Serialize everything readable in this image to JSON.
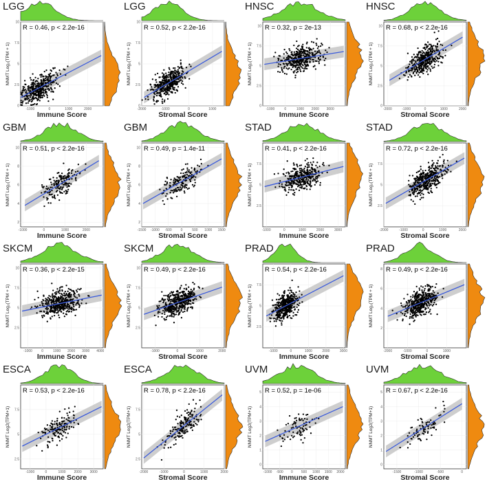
{
  "figure": {
    "panel_count": 16,
    "layout": "4x4",
    "density_top_color": "#6dd13a",
    "density_right_color": "#ef8a10",
    "fit_line_color": "#3b5bdb",
    "ci_band_color": "#bdbdbd"
  },
  "chart_data": [
    {
      "type": "scatter",
      "title": "LGG",
      "annotation": "R = 0.46, p < 2.2e-16",
      "xlabel": "Immune Score",
      "ylabel": "NNMT Log₂(TPM + 1)",
      "xlim": [
        -1500,
        2800
      ],
      "ylim": [
        0,
        10
      ],
      "xticks": [
        -1000,
        0,
        1000,
        2000
      ],
      "yticks": [
        0.0,
        2.5,
        5.0,
        7.5,
        10.0
      ],
      "n": 400,
      "fit": [
        [
          -1500,
          1.0
        ],
        [
          2700,
          6.0
        ]
      ],
      "x_center": -500,
      "x_spread": 800,
      "seed": 11
    },
    {
      "type": "scatter",
      "title": "LGG",
      "annotation": "R = 0.52, p < 2.2e-16",
      "xlabel": "Stromal Score",
      "ylabel": "NNMT Log₂(TPM + 1)",
      "xlim": [
        -2000,
        1500
      ],
      "ylim": [
        0,
        10
      ],
      "xticks": [
        -2000,
        -1000,
        0,
        1000
      ],
      "yticks": [
        0.0,
        2.5,
        5.0,
        7.5,
        10.0
      ],
      "n": 400,
      "fit": [
        [
          -1900,
          1.0
        ],
        [
          1400,
          6.5
        ]
      ],
      "x_center": -900,
      "x_spread": 600,
      "seed": 12
    },
    {
      "type": "scatter",
      "title": "HNSC",
      "annotation": "R = 0.32, p = 2e-13",
      "xlabel": "Immune Score",
      "ylabel": "NNMT Log₂(TPM + 1)",
      "xlim": [
        -1500,
        4000
      ],
      "ylim": [
        0,
        10.5
      ],
      "xticks": [
        -1000,
        0,
        1000,
        2000,
        3000
      ],
      "yticks": [
        0.0,
        2.5,
        5.0,
        7.5,
        10.0
      ],
      "n": 380,
      "fit": [
        [
          -1400,
          5.2
        ],
        [
          3900,
          6.8
        ]
      ],
      "x_center": 1000,
      "x_spread": 1200,
      "seed": 13
    },
    {
      "type": "scatter",
      "title": "HNSC",
      "annotation": "R = 0.68, p < 2.2e-16",
      "xlabel": "Stromal Score",
      "ylabel": "NNMT Log₂(TPM + 1)",
      "xlim": [
        -2200,
        2200
      ],
      "ylim": [
        0,
        10.5
      ],
      "xticks": [
        -2000,
        -1000,
        0,
        1000,
        2000
      ],
      "yticks": [
        0.0,
        2.5,
        5.0,
        7.5,
        10.0
      ],
      "n": 380,
      "fit": [
        [
          -1900,
          3.2
        ],
        [
          2000,
          8.6
        ]
      ],
      "x_center": 0,
      "x_spread": 800,
      "seed": 14
    },
    {
      "type": "scatter",
      "title": "GBM",
      "annotation": "R = 0.51, p < 2.2e-16",
      "xlabel": "Immune Score",
      "ylabel": "NNMT Log₂(TPM + 1)",
      "xlim": [
        -1100,
        2800
      ],
      "ylim": [
        1.5,
        10.5
      ],
      "xticks": [
        -1000,
        0,
        1000,
        2000
      ],
      "yticks": [
        2,
        4,
        6,
        8,
        10
      ],
      "n": 160,
      "fit": [
        [
          -900,
          3.8
        ],
        [
          2600,
          8.6
        ]
      ],
      "x_center": 800,
      "x_spread": 750,
      "seed": 15
    },
    {
      "type": "scatter",
      "title": "GBM",
      "annotation": "R = 0.49, p = 1.4e-11",
      "xlabel": "Stromal Score",
      "ylabel": "NNMT Log₂(TPM + 1)",
      "xlim": [
        -1500,
        1600
      ],
      "ylim": [
        1.5,
        10.5
      ],
      "xticks": [
        -1500,
        -1000,
        -500,
        0,
        500,
        1000,
        1500
      ],
      "yticks": [
        2,
        4,
        6,
        8,
        10
      ],
      "n": 160,
      "fit": [
        [
          -1450,
          4.0
        ],
        [
          1500,
          8.8
        ]
      ],
      "x_center": 0,
      "x_spread": 600,
      "seed": 16
    },
    {
      "type": "scatter",
      "title": "STAD",
      "annotation": "R = 0.41, p < 2.2e-16",
      "xlabel": "Immune Score",
      "ylabel": "NNMT Log₂(TPM + 1)",
      "xlim": [
        -1200,
        3400
      ],
      "ylim": [
        0,
        10
      ],
      "xticks": [
        -1000,
        0,
        1000,
        2000,
        3000
      ],
      "yticks": [
        2.5,
        5.0,
        7.5
      ],
      "n": 380,
      "fit": [
        [
          -1100,
          4.8
        ],
        [
          3300,
          7.2
        ]
      ],
      "x_center": 1000,
      "x_spread": 900,
      "seed": 17
    },
    {
      "type": "scatter",
      "title": "STAD",
      "annotation": "R = 0.72, p < 2.2e-16",
      "xlabel": "Stromal Score",
      "ylabel": "NNMT Log₂(TPM + 1)",
      "xlim": [
        -2000,
        2200
      ],
      "ylim": [
        0,
        10
      ],
      "xticks": [
        -2000,
        -1000,
        0,
        1000,
        2000
      ],
      "yticks": [
        2.5,
        5.0,
        7.5
      ],
      "n": 380,
      "fit": [
        [
          -1900,
          2.8
        ],
        [
          2100,
          8.2
        ]
      ],
      "x_center": 200,
      "x_spread": 800,
      "seed": 18
    },
    {
      "type": "scatter",
      "title": "SKCM",
      "annotation": "R = 0.36, p < 2.2e-15",
      "xlabel": "Immune Score",
      "ylabel": "NNMT Log₂(TPM + 1)",
      "xlim": [
        -1500,
        4200
      ],
      "ylim": [
        0,
        10.5
      ],
      "xticks": [
        -1000,
        0,
        1000,
        2000,
        3000,
        4000
      ],
      "yticks": [
        2.5,
        5.0,
        7.5,
        10.0
      ],
      "n": 420,
      "fit": [
        [
          -1400,
          4.6
        ],
        [
          4100,
          6.6
        ]
      ],
      "x_center": 1200,
      "x_spread": 1200,
      "seed": 19
    },
    {
      "type": "scatter",
      "title": "SKCM",
      "annotation": "R = 0.49, p < 2.2e-16",
      "xlabel": "Stromal Score",
      "ylabel": "NNMT Log₂(TPM + 1)",
      "xlim": [
        -1600,
        2100
      ],
      "ylim": [
        0,
        10.5
      ],
      "xticks": [
        -1000,
        0,
        1000,
        2000
      ],
      "yticks": [
        2.5,
        5.0,
        7.5,
        10.0
      ],
      "n": 420,
      "fit": [
        [
          -1500,
          4.2
        ],
        [
          2000,
          7.6
        ]
      ],
      "x_center": 0,
      "x_spread": 700,
      "seed": 20
    },
    {
      "type": "scatter",
      "title": "PRAD",
      "annotation": "R = 0.54, p < 2.2e-16",
      "xlabel": "Immune Score",
      "ylabel": "NNMT Log₂(TPM + 1)",
      "xlim": [
        -1600,
        3100
      ],
      "ylim": [
        0,
        10
      ],
      "xticks": [
        -1000,
        0,
        1000,
        2000,
        3000
      ],
      "yticks": [
        2.5,
        5.0,
        7.5
      ],
      "n": 420,
      "fit": [
        [
          -1400,
          3.8
        ],
        [
          3000,
          8.6
        ]
      ],
      "x_center": -300,
      "x_spread": 600,
      "seed": 21
    },
    {
      "type": "scatter",
      "title": "PRAD",
      "annotation": "R = 0.49, p < 2.2e-16",
      "xlabel": "Stromal Score",
      "ylabel": "NNMT Log₂(TPM + 1)",
      "xlim": [
        -2200,
        2000
      ],
      "ylim": [
        0,
        8.5
      ],
      "xticks": [
        -2000,
        -1000,
        0,
        1000
      ],
      "yticks": [
        2,
        4,
        6,
        8
      ],
      "n": 420,
      "fit": [
        [
          -2000,
          3.2
        ],
        [
          1900,
          6.4
        ]
      ],
      "x_center": -400,
      "x_spread": 700,
      "seed": 22
    },
    {
      "type": "scatter",
      "title": "ESCA",
      "annotation": "R = 0.53, p < 2.2e-16",
      "xlabel": "Immune Score",
      "ylabel": "NNMT Log2(TPM+1)",
      "xlim": [
        -1600,
        3600
      ],
      "ylim": [
        1.5,
        10
      ],
      "xticks": [
        -1000,
        0,
        1000,
        2000,
        3000
      ],
      "yticks": [
        2.5,
        5.0,
        7.5
      ],
      "n": 160,
      "fit": [
        [
          -1500,
          3.8
        ],
        [
          3500,
          7.8
        ]
      ],
      "x_center": 800,
      "x_spread": 900,
      "seed": 23
    },
    {
      "type": "scatter",
      "title": "ESCA",
      "annotation": "R = 0.78, p < 2.2e-16",
      "xlabel": "Stromal Score",
      "ylabel": "NNMT Log2(TPM+1)",
      "xlim": [
        -2100,
        2000
      ],
      "ylim": [
        1.5,
        10
      ],
      "xticks": [
        -2000,
        -1000,
        0,
        1000,
        2000
      ],
      "yticks": [
        2.5,
        5.0,
        7.5
      ],
      "n": 160,
      "fit": [
        [
          -2000,
          2.6
        ],
        [
          1900,
          9.0
        ]
      ],
      "x_center": -100,
      "x_spread": 800,
      "seed": 24
    },
    {
      "type": "scatter",
      "title": "UVM",
      "annotation": "R = 0.52, p = 1e-06",
      "xlabel": "Immune Score",
      "ylabel": "NNMT Log2(TPM+1)",
      "xlim": [
        -1200,
        2200
      ],
      "ylim": [
        -0.3,
        5.5
      ],
      "xticks": [
        -1000,
        -500,
        0,
        500,
        1000,
        1500,
        2000
      ],
      "yticks": [
        0,
        1,
        2,
        3,
        4,
        5
      ],
      "n": 80,
      "fit": [
        [
          -1100,
          1.6
        ],
        [
          2100,
          4.0
        ]
      ],
      "x_center": 200,
      "x_spread": 700,
      "seed": 25
    },
    {
      "type": "scatter",
      "title": "UVM",
      "annotation": "R = 0.67, p < 2.2e-16",
      "xlabel": "Stromal Score",
      "ylabel": "NNMT Log2(TPM+1)",
      "xlim": [
        -1800,
        100
      ],
      "ylim": [
        -0.3,
        5.5
      ],
      "xticks": [
        -1500,
        -1000,
        -500,
        0
      ],
      "yticks": [
        0,
        1,
        2,
        3,
        4,
        5
      ],
      "n": 80,
      "fit": [
        [
          -1750,
          0.9
        ],
        [
          0,
          4.2
        ]
      ],
      "x_center": -900,
      "x_spread": 400,
      "seed": 26
    }
  ]
}
